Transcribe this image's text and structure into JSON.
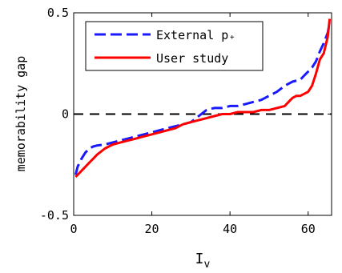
{
  "chart_data": {
    "type": "line",
    "xlabel": "I",
    "xlabel_subscript": "v",
    "ylabel": "memorability gap",
    "xlim": [
      0,
      66
    ],
    "ylim": [
      -0.5,
      0.5
    ],
    "xticks": [
      0,
      20,
      40,
      60
    ],
    "xtick_labels": [
      "0",
      "20",
      "40",
      "60"
    ],
    "yticks": [
      -0.5,
      0,
      0.5
    ],
    "ytick_labels": [
      "-0.5",
      "0",
      "0.5"
    ],
    "grid": false,
    "legend_position": "top-right",
    "reference_line": {
      "y": 0,
      "style": "dashed",
      "color": "#000000"
    },
    "series": [
      {
        "name": "External p₊",
        "color": "#1a1aff",
        "style": "dashed",
        "x": [
          0.5,
          1,
          2,
          3,
          4,
          5,
          6,
          8,
          10,
          12,
          14,
          16,
          18,
          20,
          22,
          24,
          26,
          28,
          30,
          32,
          34,
          36,
          38,
          40,
          42,
          44,
          46,
          48,
          50,
          52,
          54,
          56,
          58,
          59,
          60,
          61,
          62,
          63,
          64,
          65,
          65.5
        ],
        "y": [
          -0.3,
          -0.26,
          -0.22,
          -0.19,
          -0.17,
          -0.16,
          -0.155,
          -0.15,
          -0.14,
          -0.13,
          -0.12,
          -0.11,
          -0.1,
          -0.09,
          -0.08,
          -0.07,
          -0.06,
          -0.05,
          -0.04,
          -0.01,
          0.02,
          0.03,
          0.03,
          0.04,
          0.04,
          0.05,
          0.06,
          0.07,
          0.09,
          0.11,
          0.14,
          0.16,
          0.17,
          0.19,
          0.21,
          0.23,
          0.26,
          0.31,
          0.35,
          0.4,
          0.45
        ]
      },
      {
        "name": "User study",
        "color": "#ff0000",
        "style": "solid",
        "x": [
          0.5,
          1,
          2,
          3,
          4,
          5,
          6,
          8,
          10,
          12,
          14,
          16,
          18,
          20,
          22,
          24,
          26,
          28,
          30,
          32,
          34,
          36,
          38,
          40,
          42,
          44,
          46,
          48,
          50,
          52,
          54,
          55,
          56,
          57,
          58,
          59,
          60,
          61,
          62,
          63,
          64,
          65,
          65.5
        ],
        "y": [
          -0.31,
          -0.3,
          -0.28,
          -0.26,
          -0.24,
          -0.22,
          -0.2,
          -0.17,
          -0.15,
          -0.14,
          -0.13,
          -0.12,
          -0.11,
          -0.1,
          -0.09,
          -0.08,
          -0.07,
          -0.05,
          -0.04,
          -0.03,
          -0.02,
          -0.01,
          0.0,
          0.0,
          0.01,
          0.01,
          0.01,
          0.02,
          0.02,
          0.03,
          0.04,
          0.06,
          0.08,
          0.09,
          0.09,
          0.1,
          0.11,
          0.14,
          0.2,
          0.27,
          0.3,
          0.38,
          0.47
        ]
      }
    ]
  }
}
